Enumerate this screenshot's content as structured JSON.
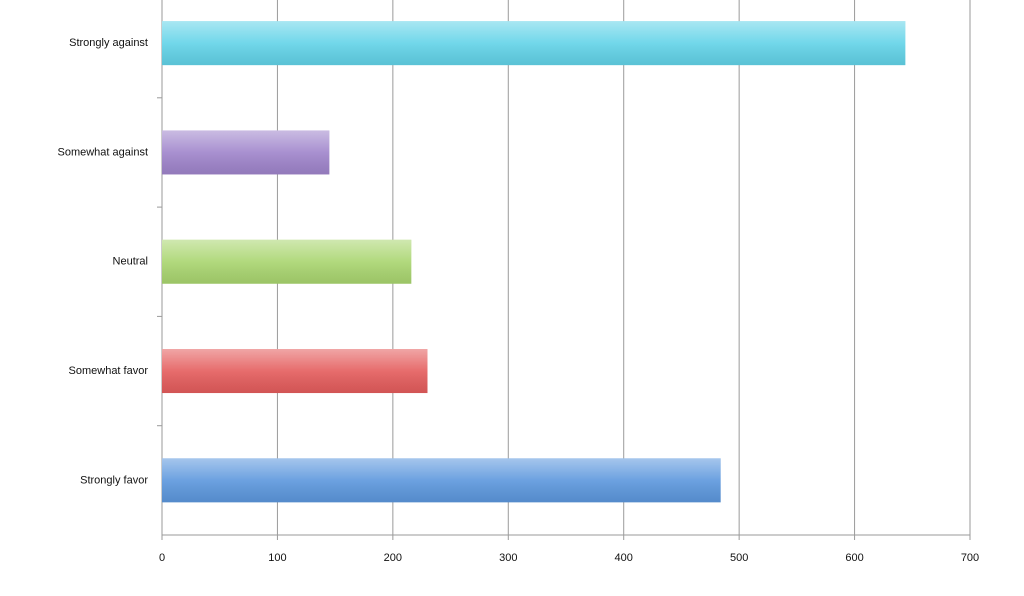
{
  "chart_data": {
    "type": "bar",
    "orientation": "horizontal",
    "categories": [
      "Strongly against",
      "Somewhat against",
      "Neutral",
      "Somewhat favor",
      "Strongly favor"
    ],
    "values": [
      644,
      145,
      216,
      230,
      484
    ],
    "colors": [
      "#62d3e8",
      "#9f84cb",
      "#a9d56f",
      "#e45c5c",
      "#5c97dd"
    ],
    "xlim": [
      0,
      700
    ],
    "xticks": [
      0,
      100,
      200,
      300,
      400,
      500,
      600,
      700
    ],
    "grid": true
  }
}
